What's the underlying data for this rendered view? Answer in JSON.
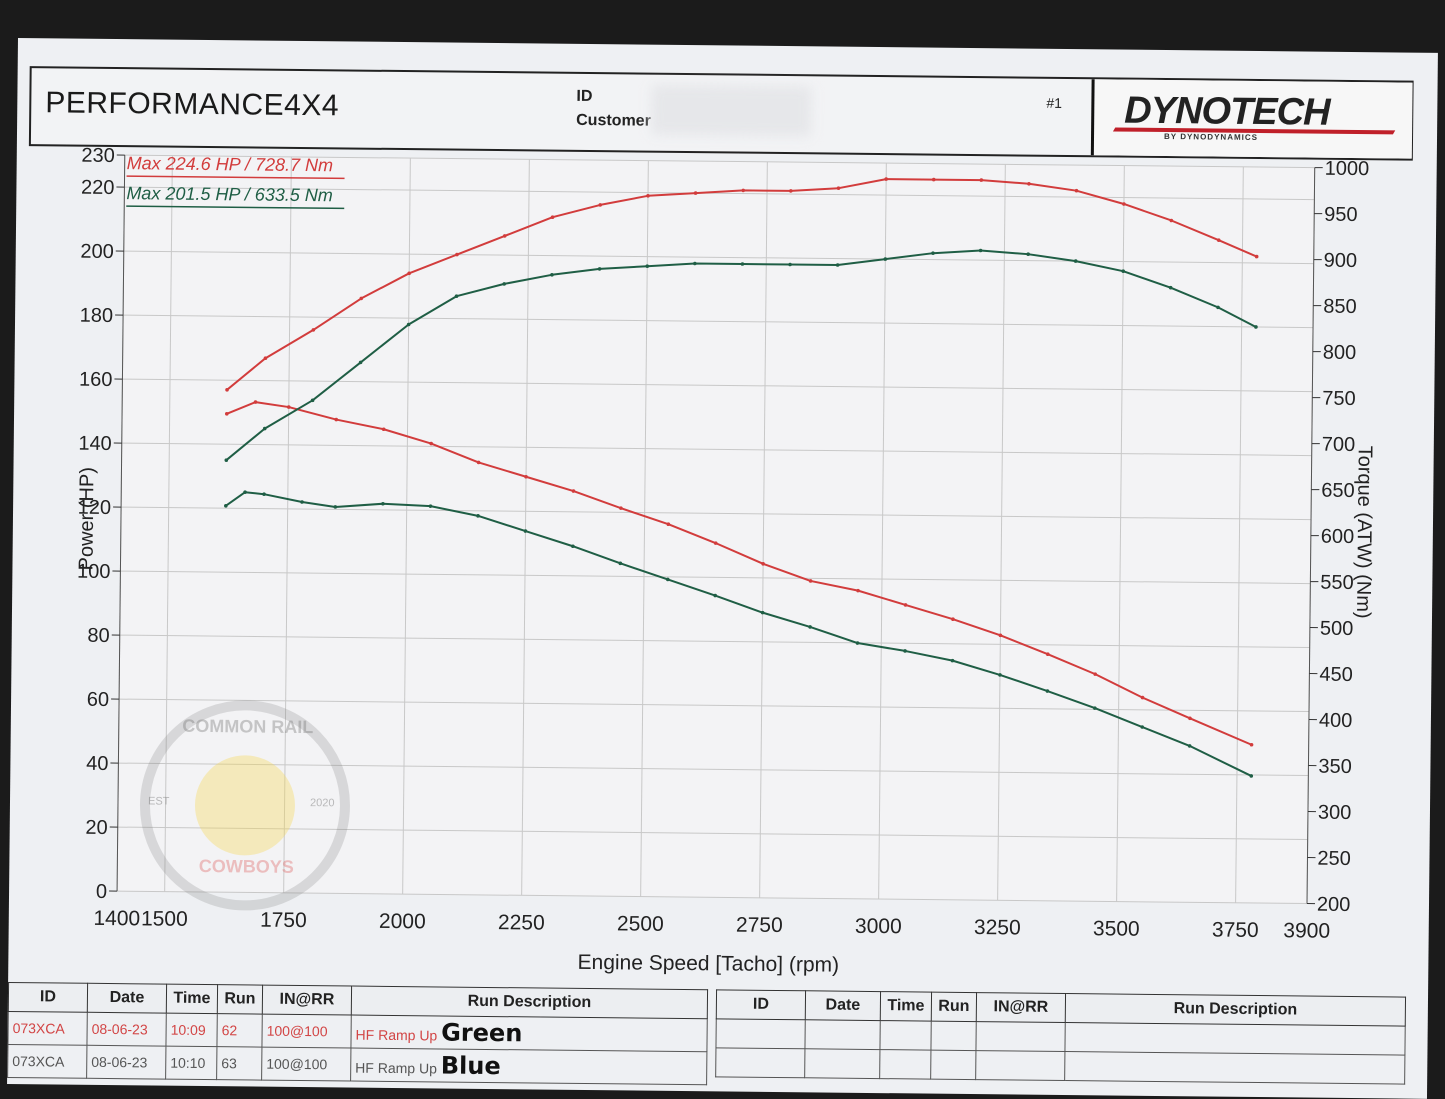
{
  "header": {
    "company": "PERFORMANCE4X4",
    "id_label": "ID",
    "customer_label": "Customer",
    "run_number": "#1",
    "logo_text": "DYNOTECH",
    "logo_sub": "BY DYNODYNAMICS"
  },
  "watermark": {
    "top_text": "COMMON RAIL",
    "bottom_text": "COWBOYS",
    "est": "EST",
    "year": "2020"
  },
  "colors": {
    "red_run": "#d23c3c",
    "green_run": "#1f5e45",
    "grid": "#c8c8c8"
  },
  "chart_data": {
    "type": "line",
    "xlabel": "Engine Speed [Tacho] (rpm)",
    "ylabel": "Power (HP)",
    "y2label": "Torque (ATW) (Nm)",
    "xlim": [
      1400,
      3900
    ],
    "ylim": [
      0,
      230
    ],
    "y2lim": [
      200,
      1000
    ],
    "x_ticks": [
      1400,
      1500,
      1750,
      2000,
      2250,
      2500,
      2750,
      3000,
      3250,
      3500,
      3750,
      3900
    ],
    "y_ticks": [
      0,
      20,
      40,
      60,
      80,
      100,
      120,
      140,
      160,
      180,
      200,
      220,
      230
    ],
    "y2_ticks": [
      200,
      250,
      300,
      350,
      400,
      450,
      500,
      550,
      600,
      650,
      700,
      750,
      800,
      850,
      900,
      950,
      1000
    ],
    "grid": true,
    "legend": [
      {
        "text": "Max 224.6 HP  / 728.7 Nm",
        "color": "#d23c3c"
      },
      {
        "text": "Max 201.5 HP  / 633.5 Nm",
        "color": "#1f5e45"
      }
    ],
    "series": [
      {
        "color": "#d23c3c",
        "axis": "power",
        "x": [
          1620,
          1700,
          1800,
          1900,
          2000,
          2100,
          2200,
          2300,
          2400,
          2500,
          2600,
          2700,
          2800,
          2900,
          3000,
          3100,
          3200,
          3300,
          3400,
          3500,
          3600,
          3700,
          3780
        ],
        "y": [
          157,
          167,
          176,
          186,
          194,
          200,
          206,
          212,
          216,
          219,
          220,
          221,
          221,
          222,
          225,
          225,
          225,
          224,
          222,
          218,
          213,
          207,
          202
        ]
      },
      {
        "color": "#d23c3c",
        "axis": "torque",
        "x": [
          1620,
          1680,
          1750,
          1850,
          1950,
          2050,
          2150,
          2250,
          2350,
          2450,
          2550,
          2650,
          2750,
          2850,
          2950,
          3050,
          3150,
          3250,
          3350,
          3450,
          3550,
          3650,
          3780
        ],
        "y": [
          720,
          733,
          728,
          715,
          705,
          690,
          670,
          655,
          640,
          622,
          605,
          585,
          563,
          545,
          535,
          520,
          505,
          488,
          468,
          447,
          422,
          400,
          372
        ]
      },
      {
        "color": "#1f5e45",
        "axis": "power",
        "x": [
          1620,
          1700,
          1800,
          1900,
          2000,
          2100,
          2200,
          2300,
          2400,
          2500,
          2600,
          2700,
          2800,
          2900,
          3000,
          3100,
          3200,
          3300,
          3400,
          3500,
          3600,
          3700,
          3780
        ],
        "y": [
          135,
          145,
          154,
          166,
          178,
          187,
          191,
          194,
          196,
          197,
          198,
          198,
          198,
          198,
          200,
          202,
          203,
          202,
          200,
          197,
          192,
          186,
          180
        ]
      },
      {
        "color": "#1f5e45",
        "axis": "torque",
        "x": [
          1620,
          1660,
          1700,
          1780,
          1850,
          1950,
          2050,
          2150,
          2250,
          2350,
          2450,
          2550,
          2650,
          2750,
          2850,
          2950,
          3050,
          3150,
          3250,
          3350,
          3450,
          3550,
          3650,
          3780
        ],
        "y": [
          620,
          635,
          633,
          625,
          620,
          624,
          622,
          612,
          596,
          580,
          562,
          545,
          528,
          510,
          495,
          478,
          470,
          460,
          445,
          428,
          410,
          390,
          370,
          338
        ]
      }
    ]
  },
  "run_table": {
    "headers": [
      "ID",
      "Date",
      "Time",
      "Run",
      "IN@RR",
      "Run Description"
    ],
    "rows": [
      {
        "id": "073XCA",
        "date": "08-06-23",
        "time": "10:09",
        "run": "62",
        "inrr": "100@100",
        "desc": "HF Ramp Up",
        "note": "Green"
      },
      {
        "id": "073XCA",
        "date": "08-06-23",
        "time": "10:10",
        "run": "63",
        "inrr": "100@100",
        "desc": "HF Ramp Up",
        "note": "Blue"
      }
    ]
  }
}
